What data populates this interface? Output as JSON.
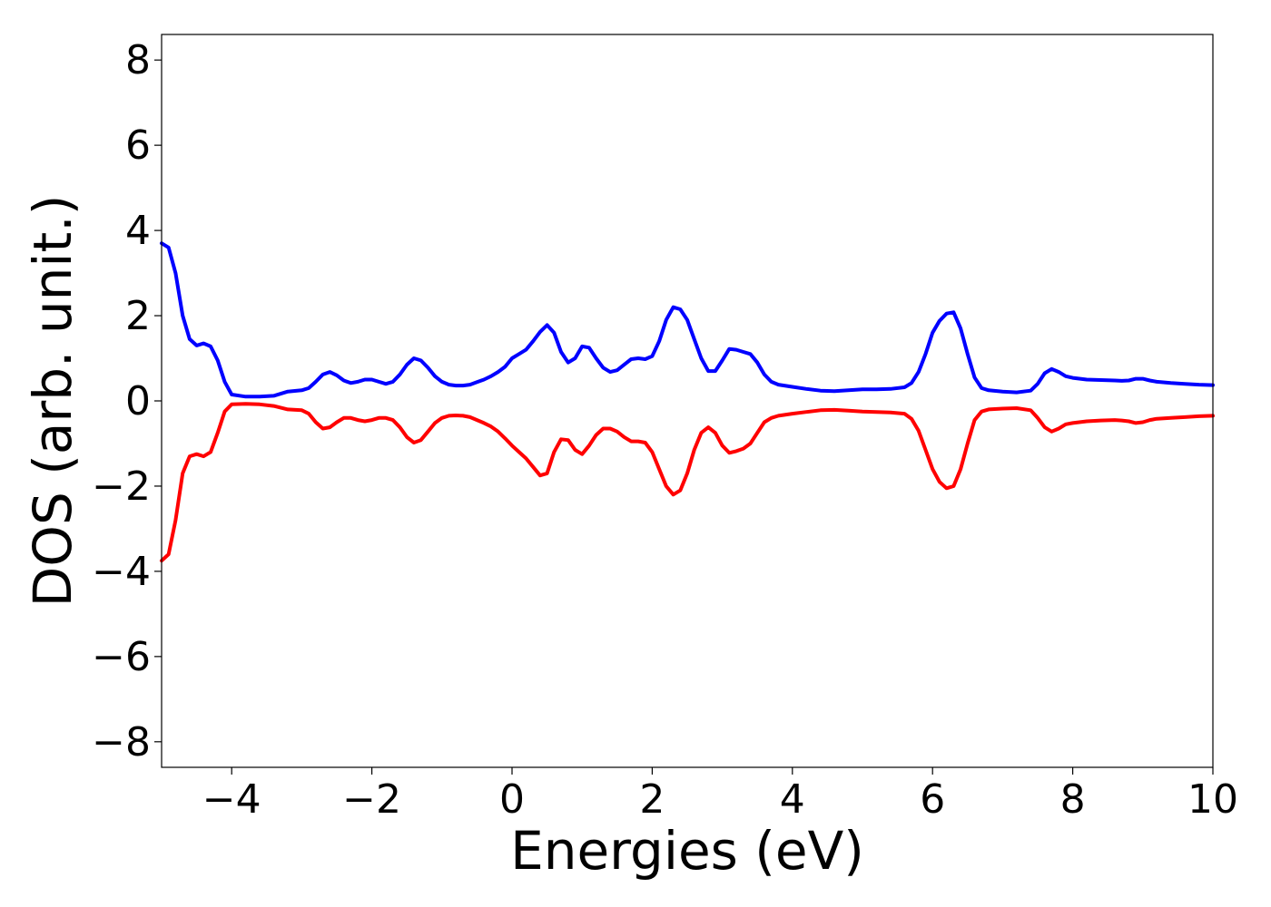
{
  "chart_data": {
    "type": "line",
    "title": "",
    "xlabel": "Energies (eV)",
    "ylabel": "DOS (arb. unit.)",
    "xlim": [
      -5,
      10
    ],
    "ylim": [
      -8.6,
      8.6
    ],
    "xticks": [
      -4,
      -2,
      0,
      2,
      4,
      6,
      8,
      10
    ],
    "yticks": [
      -8,
      -6,
      -4,
      -2,
      0,
      2,
      4,
      6,
      8
    ],
    "xtick_labels": [
      "−4",
      "−2",
      "0",
      "2",
      "4",
      "6",
      "8",
      "10"
    ],
    "ytick_labels": [
      "−8",
      "−6",
      "−4",
      "−2",
      "0",
      "2",
      "4",
      "6",
      "8"
    ],
    "grid": false,
    "legend": "none",
    "series": [
      {
        "color": "#0000ff",
        "x": [
          -5.0,
          -4.9,
          -4.8,
          -4.7,
          -4.6,
          -4.5,
          -4.4,
          -4.3,
          -4.2,
          -4.1,
          -4.0,
          -3.8,
          -3.6,
          -3.4,
          -3.2,
          -3.0,
          -2.9,
          -2.8,
          -2.7,
          -2.6,
          -2.5,
          -2.4,
          -2.3,
          -2.2,
          -2.1,
          -2.0,
          -1.9,
          -1.8,
          -1.7,
          -1.6,
          -1.5,
          -1.4,
          -1.3,
          -1.2,
          -1.1,
          -1.0,
          -0.9,
          -0.8,
          -0.7,
          -0.6,
          -0.5,
          -0.4,
          -0.3,
          -0.2,
          -0.1,
          0.0,
          0.1,
          0.2,
          0.3,
          0.4,
          0.5,
          0.6,
          0.7,
          0.8,
          0.9,
          1.0,
          1.1,
          1.2,
          1.3,
          1.4,
          1.5,
          1.6,
          1.7,
          1.8,
          1.9,
          2.0,
          2.1,
          2.2,
          2.3,
          2.4,
          2.5,
          2.6,
          2.7,
          2.8,
          2.9,
          3.0,
          3.1,
          3.2,
          3.3,
          3.4,
          3.5,
          3.6,
          3.7,
          3.8,
          4.0,
          4.2,
          4.4,
          4.6,
          4.8,
          5.0,
          5.2,
          5.4,
          5.6,
          5.7,
          5.8,
          5.9,
          6.0,
          6.1,
          6.2,
          6.3,
          6.4,
          6.5,
          6.6,
          6.7,
          6.8,
          7.0,
          7.2,
          7.4,
          7.5,
          7.6,
          7.7,
          7.8,
          7.9,
          8.0,
          8.2,
          8.4,
          8.6,
          8.7,
          8.8,
          8.9,
          9.0,
          9.1,
          9.2,
          9.4,
          9.6,
          9.8,
          10.0
        ],
        "y": [
          3.7,
          3.6,
          3.0,
          2.0,
          1.45,
          1.3,
          1.35,
          1.28,
          0.95,
          0.45,
          0.15,
          0.1,
          0.1,
          0.12,
          0.22,
          0.25,
          0.3,
          0.45,
          0.62,
          0.68,
          0.6,
          0.48,
          0.42,
          0.45,
          0.5,
          0.5,
          0.45,
          0.4,
          0.45,
          0.62,
          0.85,
          1.0,
          0.95,
          0.78,
          0.58,
          0.45,
          0.38,
          0.36,
          0.36,
          0.38,
          0.44,
          0.5,
          0.58,
          0.68,
          0.8,
          1.0,
          1.1,
          1.2,
          1.4,
          1.62,
          1.78,
          1.6,
          1.15,
          0.9,
          1.0,
          1.28,
          1.25,
          1.0,
          0.78,
          0.68,
          0.72,
          0.85,
          0.98,
          1.0,
          0.98,
          1.05,
          1.4,
          1.9,
          2.2,
          2.15,
          1.9,
          1.45,
          1.0,
          0.7,
          0.7,
          0.95,
          1.22,
          1.2,
          1.15,
          1.1,
          0.9,
          0.62,
          0.45,
          0.38,
          0.33,
          0.28,
          0.24,
          0.23,
          0.25,
          0.27,
          0.27,
          0.28,
          0.32,
          0.42,
          0.68,
          1.1,
          1.6,
          1.88,
          2.05,
          2.08,
          1.7,
          1.1,
          0.55,
          0.3,
          0.25,
          0.22,
          0.2,
          0.24,
          0.4,
          0.65,
          0.75,
          0.68,
          0.58,
          0.54,
          0.5,
          0.49,
          0.48,
          0.47,
          0.48,
          0.52,
          0.52,
          0.48,
          0.45,
          0.42,
          0.4,
          0.38,
          0.37
        ]
      },
      {
        "color": "#ff0000",
        "x": [
          -5.0,
          -4.9,
          -4.8,
          -4.7,
          -4.6,
          -4.5,
          -4.4,
          -4.3,
          -4.2,
          -4.1,
          -4.0,
          -3.8,
          -3.6,
          -3.4,
          -3.2,
          -3.0,
          -2.9,
          -2.8,
          -2.7,
          -2.6,
          -2.5,
          -2.4,
          -2.3,
          -2.2,
          -2.1,
          -2.0,
          -1.9,
          -1.8,
          -1.7,
          -1.6,
          -1.5,
          -1.4,
          -1.3,
          -1.2,
          -1.1,
          -1.0,
          -0.9,
          -0.8,
          -0.7,
          -0.6,
          -0.5,
          -0.4,
          -0.3,
          -0.2,
          -0.1,
          0.0,
          0.1,
          0.2,
          0.3,
          0.4,
          0.5,
          0.6,
          0.7,
          0.8,
          0.9,
          1.0,
          1.1,
          1.2,
          1.3,
          1.4,
          1.5,
          1.6,
          1.7,
          1.8,
          1.9,
          2.0,
          2.1,
          2.2,
          2.3,
          2.4,
          2.5,
          2.6,
          2.7,
          2.8,
          2.9,
          3.0,
          3.1,
          3.2,
          3.3,
          3.4,
          3.5,
          3.6,
          3.7,
          3.8,
          4.0,
          4.2,
          4.4,
          4.6,
          4.8,
          5.0,
          5.2,
          5.4,
          5.6,
          5.7,
          5.8,
          5.9,
          6.0,
          6.1,
          6.2,
          6.3,
          6.4,
          6.5,
          6.6,
          6.7,
          6.8,
          7.0,
          7.2,
          7.4,
          7.5,
          7.6,
          7.7,
          7.8,
          7.9,
          8.0,
          8.2,
          8.4,
          8.6,
          8.7,
          8.8,
          8.9,
          9.0,
          9.1,
          9.2,
          9.4,
          9.6,
          9.8,
          10.0
        ],
        "y": [
          -3.75,
          -3.6,
          -2.8,
          -1.7,
          -1.3,
          -1.25,
          -1.3,
          -1.2,
          -0.75,
          -0.25,
          -0.08,
          -0.07,
          -0.08,
          -0.12,
          -0.2,
          -0.22,
          -0.3,
          -0.5,
          -0.65,
          -0.62,
          -0.5,
          -0.4,
          -0.4,
          -0.45,
          -0.48,
          -0.45,
          -0.4,
          -0.4,
          -0.45,
          -0.62,
          -0.85,
          -0.98,
          -0.92,
          -0.72,
          -0.52,
          -0.4,
          -0.35,
          -0.34,
          -0.35,
          -0.38,
          -0.45,
          -0.52,
          -0.6,
          -0.72,
          -0.88,
          -1.05,
          -1.2,
          -1.35,
          -1.55,
          -1.75,
          -1.7,
          -1.2,
          -0.9,
          -0.92,
          -1.15,
          -1.25,
          -1.05,
          -0.8,
          -0.65,
          -0.65,
          -0.72,
          -0.85,
          -0.95,
          -0.95,
          -0.98,
          -1.2,
          -1.6,
          -2.0,
          -2.2,
          -2.1,
          -1.7,
          -1.15,
          -0.75,
          -0.62,
          -0.75,
          -1.05,
          -1.22,
          -1.18,
          -1.12,
          -1.0,
          -0.75,
          -0.5,
          -0.4,
          -0.35,
          -0.3,
          -0.26,
          -0.22,
          -0.21,
          -0.23,
          -0.25,
          -0.26,
          -0.27,
          -0.3,
          -0.42,
          -0.7,
          -1.15,
          -1.6,
          -1.9,
          -2.05,
          -2.0,
          -1.6,
          -1.0,
          -0.45,
          -0.25,
          -0.2,
          -0.18,
          -0.17,
          -0.22,
          -0.4,
          -0.62,
          -0.72,
          -0.65,
          -0.55,
          -0.52,
          -0.48,
          -0.46,
          -0.45,
          -0.46,
          -0.48,
          -0.52,
          -0.5,
          -0.45,
          -0.42,
          -0.4,
          -0.38,
          -0.36,
          -0.35
        ]
      }
    ]
  }
}
